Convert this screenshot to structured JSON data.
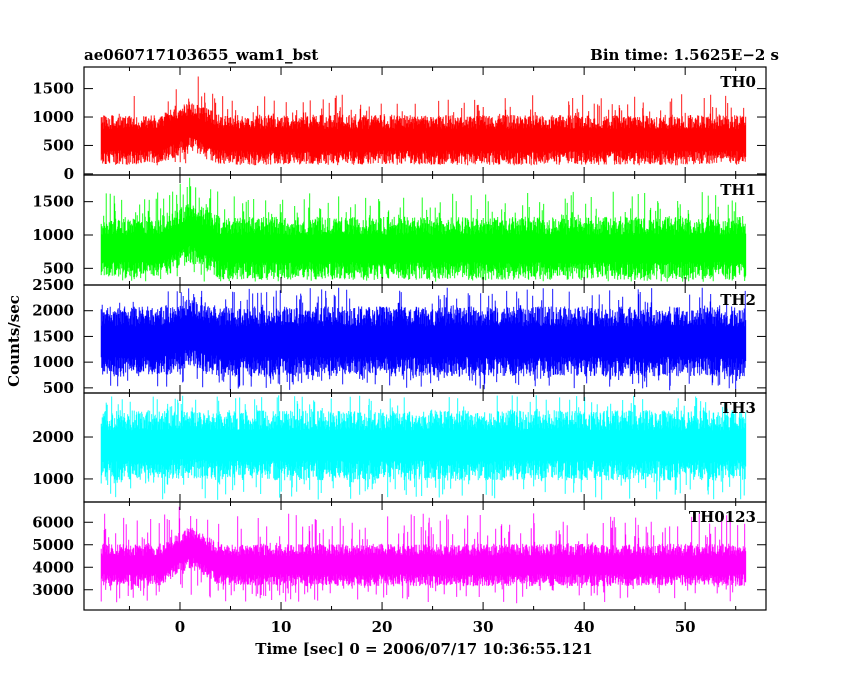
{
  "chart_data": {
    "type": "line",
    "title_left": "ae060717103655_wam1_bst",
    "title_right": "Bin time: 1.5625E−2 s",
    "xlabel": "Time [sec] 0 = 2006/07/17 10:36:55.121",
    "ylabel": "Counts/sec",
    "xlim": [
      -9.5,
      58
    ],
    "x_ticks": [
      0,
      10,
      20,
      30,
      40,
      50
    ],
    "x_tick_labels": [
      "0",
      "10",
      "20",
      "30",
      "40",
      "50"
    ],
    "x_data_range": [
      -7.8,
      56.0
    ],
    "burst_window": [
      -2,
      4
    ],
    "grid": false,
    "legend": "none",
    "panels": [
      {
        "name": "TH0",
        "color": "#ff0000",
        "ylim": [
          -20,
          1880
        ],
        "y_ticks": [
          0,
          500,
          1000,
          1500
        ],
        "y_tick_labels": [
          "0",
          "500",
          "1000",
          "1500"
        ],
        "mean": 600,
        "spread": 420,
        "peak": 1400,
        "trough": 150,
        "burst_mean": 850,
        "burst_peak": 1880
      },
      {
        "name": "TH1",
        "color": "#00ff00",
        "ylim": [
          250,
          1900
        ],
        "y_ticks": [
          500,
          1000,
          1500
        ],
        "y_tick_labels": [
          "500",
          "1000",
          "1500"
        ],
        "mean": 800,
        "spread": 450,
        "peak": 1650,
        "trough": 300,
        "burst_mean": 1050,
        "burst_peak": 1900
      },
      {
        "name": "TH2",
        "color": "#0000ff",
        "ylim": [
          400,
          2500
        ],
        "y_ticks": [
          500,
          1000,
          1500,
          2000,
          2500
        ],
        "y_tick_labels": [
          "500",
          "1000",
          "1500",
          "2000",
          "2500"
        ],
        "mean": 1400,
        "spread": 650,
        "peak": 2450,
        "trough": 450,
        "burst_mean": 1550,
        "burst_peak": 2500
      },
      {
        "name": "TH3",
        "color": "#00ffff",
        "ylim": [
          450,
          3050
        ],
        "y_ticks": [
          1000,
          2000
        ],
        "y_tick_labels": [
          "1000",
          "2000"
        ],
        "mean": 1800,
        "spread": 800,
        "peak": 3000,
        "trough": 500,
        "burst_mean": 1850,
        "burst_peak": 3050
      },
      {
        "name": "TH0123",
        "color": "#ff00ff",
        "ylim": [
          2100,
          6900
        ],
        "y_ticks": [
          3000,
          4000,
          5000,
          6000
        ],
        "y_tick_labels": [
          "3000",
          "4000",
          "5000",
          "6000"
        ],
        "mean": 4100,
        "spread": 900,
        "peak": 6400,
        "trough": 2400,
        "burst_mean": 4900,
        "burst_peak": 6900
      }
    ]
  }
}
